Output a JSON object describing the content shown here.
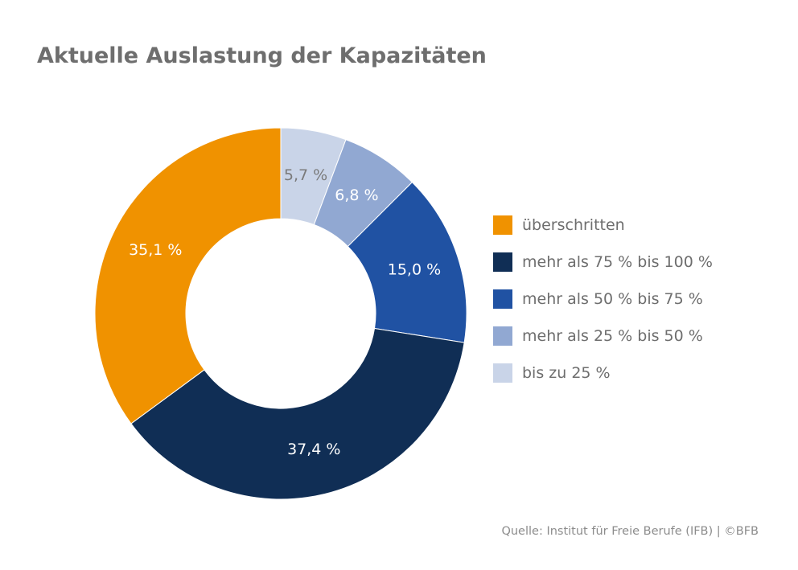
{
  "chart_data": {
    "type": "pie",
    "title": "Aktuelle Auslastung der Kapazitäten",
    "donut": true,
    "slices": [
      {
        "label": "bis zu 25 %",
        "value": 5.7,
        "display": "5,7 %",
        "color": "#c9d4e8",
        "text_color": "#7a7a7a"
      },
      {
        "label": "mehr als 25 % bis 50 %",
        "value": 6.8,
        "display": "6,8 %",
        "color": "#91a8d2",
        "text_color": "#ffffff"
      },
      {
        "label": "mehr als 50 % bis 75 %",
        "value": 15.0,
        "display": "15,0 %",
        "color": "#2052a3",
        "text_color": "#ffffff"
      },
      {
        "label": "mehr als 75 % bis 100 %",
        "value": 37.4,
        "display": "37,4 %",
        "color": "#102e55",
        "text_color": "#ffffff"
      },
      {
        "label": "überschritten",
        "value": 35.1,
        "display": "35,1 %",
        "color": "#f09200",
        "text_color": "#ffffff"
      }
    ],
    "legend": {
      "placement": "right",
      "entries": [
        {
          "label": "überschritten",
          "color": "#f09200"
        },
        {
          "label": "mehr als 75 % bis 100 %",
          "color": "#102e55"
        },
        {
          "label": "mehr als 50 % bis 75 %",
          "color": "#2052a3"
        },
        {
          "label": "mehr als 25 % bis 50 %",
          "color": "#91a8d2"
        },
        {
          "label": "bis zu 25 %",
          "color": "#c9d4e8"
        }
      ]
    }
  },
  "source": "Quelle: Institut für Freie Berufe (IFB)  |  ©BFB"
}
